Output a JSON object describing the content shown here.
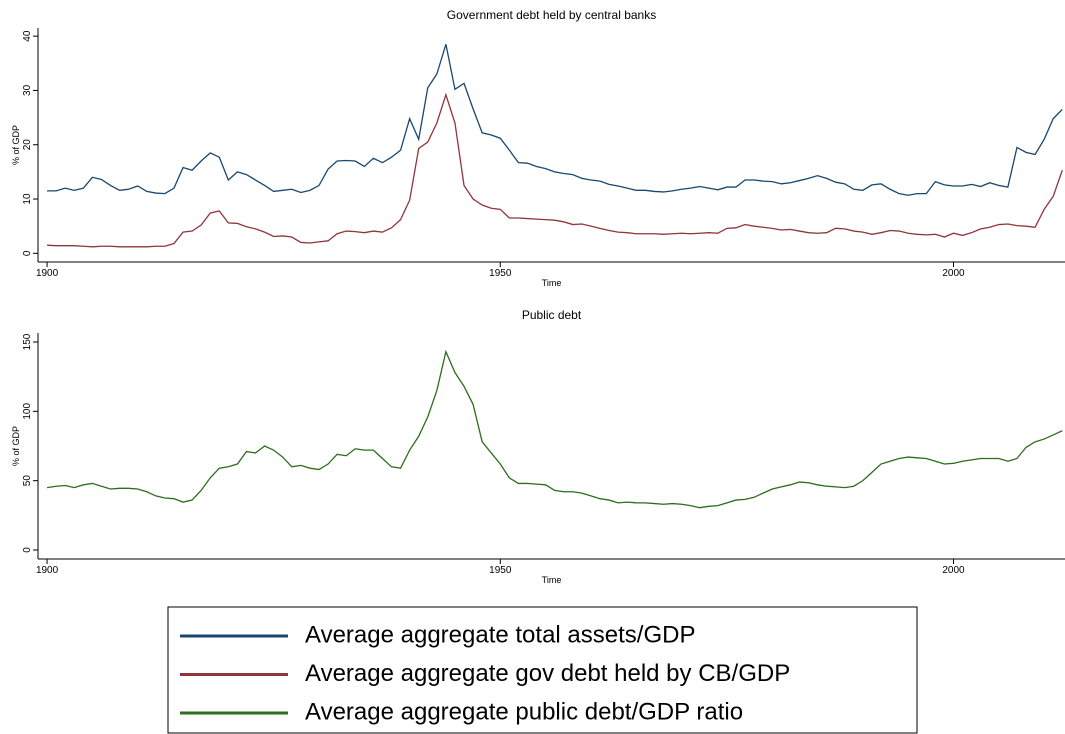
{
  "chart_data": [
    {
      "type": "line",
      "title": "Government debt held by central banks",
      "y_label": "% of GDP",
      "x_label": "Time",
      "xlim": [
        1899,
        2012.3
      ],
      "xticks": [
        1900,
        1950,
        2000
      ],
      "ylim": [
        -1.6,
        41.5
      ],
      "yticks": [
        0,
        10,
        20,
        30,
        40
      ],
      "x": [
        1900,
        1901,
        1902,
        1903,
        1904,
        1905,
        1906,
        1907,
        1908,
        1909,
        1910,
        1911,
        1912,
        1913,
        1914,
        1915,
        1916,
        1917,
        1918,
        1919,
        1920,
        1921,
        1922,
        1923,
        1924,
        1925,
        1926,
        1927,
        1928,
        1929,
        1930,
        1931,
        1932,
        1933,
        1934,
        1935,
        1936,
        1937,
        1938,
        1939,
        1940,
        1941,
        1942,
        1943,
        1944,
        1945,
        1946,
        1947,
        1948,
        1949,
        1950,
        1951,
        1952,
        1953,
        1954,
        1955,
        1956,
        1957,
        1958,
        1959,
        1960,
        1961,
        1962,
        1963,
        1964,
        1965,
        1966,
        1967,
        1968,
        1969,
        1970,
        1971,
        1972,
        1973,
        1974,
        1975,
        1976,
        1977,
        1978,
        1979,
        1980,
        1981,
        1982,
        1983,
        1984,
        1985,
        1986,
        1987,
        1988,
        1989,
        1990,
        1991,
        1992,
        1993,
        1994,
        1995,
        1996,
        1997,
        1998,
        1999,
        2000,
        2001,
        2002,
        2003,
        2004,
        2005,
        2006,
        2007,
        2008,
        2009,
        2010,
        2011,
        2012
      ],
      "series": [
        {
          "name": "Average aggregate total assets/GDP",
          "color": "#1a476f",
          "values": [
            11.5,
            11.5,
            12,
            11.6,
            12,
            14,
            13.6,
            12.5,
            11.6,
            11.8,
            12.4,
            11.4,
            11.1,
            11,
            12,
            15.8,
            15.3,
            17,
            18.5,
            17.7,
            13.5,
            15,
            14.5,
            13.5,
            12.5,
            11.4,
            11.6,
            11.8,
            11.2,
            11.6,
            12.5,
            15.5,
            17,
            17.1,
            17,
            16,
            17.5,
            16.7,
            17.7,
            19,
            24.8,
            21,
            30.5,
            33,
            38.5,
            30.2,
            31.3,
            26.6,
            22.2,
            21.8,
            21.2,
            19,
            16.7,
            16.6,
            16,
            15.6,
            15,
            14.7,
            14.5,
            13.8,
            13.5,
            13.3,
            12.7,
            12.4,
            12,
            11.6,
            11.6,
            11.4,
            11.3,
            11.5,
            11.8,
            12,
            12.3,
            12,
            11.7,
            12.2,
            12.2,
            13.5,
            13.5,
            13.3,
            13.2,
            12.8,
            13,
            13.4,
            13.8,
            14.3,
            13.8,
            13.1,
            12.8,
            11.8,
            11.6,
            12.6,
            12.8,
            11.8,
            11,
            10.7,
            11,
            11,
            13.2,
            12.6,
            12.4,
            12.4,
            12.7,
            12.3,
            13,
            12.5,
            12.2,
            19.5,
            18.6,
            18.2,
            21,
            24.8,
            26.5
          ]
        },
        {
          "name": "Average aggregate gov debt held by CB/GDP",
          "color": "#90353b",
          "values": [
            1.5,
            1.4,
            1.4,
            1.4,
            1.3,
            1.2,
            1.3,
            1.3,
            1.2,
            1.2,
            1.2,
            1.2,
            1.3,
            1.3,
            1.8,
            3.9,
            4.1,
            5.2,
            7.4,
            7.8,
            5.6,
            5.5,
            4.9,
            4.5,
            3.9,
            3.1,
            3.2,
            3,
            2,
            1.9,
            2.1,
            2.3,
            3.6,
            4.1,
            4,
            3.8,
            4.1,
            3.9,
            4.7,
            6.2,
            9.8,
            19.3,
            20.5,
            24,
            29.2,
            24,
            12.5,
            10,
            8.9,
            8.3,
            8.1,
            6.5,
            6.5,
            6.4,
            6.3,
            6.2,
            6.1,
            5.8,
            5.3,
            5.4,
            5,
            4.6,
            4.2,
            3.9,
            3.8,
            3.6,
            3.6,
            3.6,
            3.5,
            3.6,
            3.7,
            3.6,
            3.7,
            3.8,
            3.7,
            4.6,
            4.7,
            5.3,
            5,
            4.8,
            4.6,
            4.3,
            4.4,
            4.1,
            3.8,
            3.7,
            3.8,
            4.6,
            4.5,
            4.1,
            3.9,
            3.5,
            3.8,
            4.2,
            4.1,
            3.7,
            3.5,
            3.4,
            3.5,
            3,
            3.7,
            3.3,
            3.8,
            4.5,
            4.8,
            5.3,
            5.4,
            5.1,
            5,
            4.8,
            8.1,
            10.5,
            15.3
          ]
        }
      ]
    },
    {
      "type": "line",
      "title": "Public debt",
      "y_label": "% of GDP",
      "x_label": "Time",
      "xlim": [
        1899,
        2012.3
      ],
      "xticks": [
        1900,
        1950,
        2000
      ],
      "ylim": [
        -6.5,
        156.5
      ],
      "yticks": [
        0,
        50,
        100,
        150
      ],
      "x": [
        1900,
        1901,
        1902,
        1903,
        1904,
        1905,
        1906,
        1907,
        1908,
        1909,
        1910,
        1911,
        1912,
        1913,
        1914,
        1915,
        1916,
        1917,
        1918,
        1919,
        1920,
        1921,
        1922,
        1923,
        1924,
        1925,
        1926,
        1927,
        1928,
        1929,
        1930,
        1931,
        1932,
        1933,
        1934,
        1935,
        1936,
        1937,
        1938,
        1939,
        1940,
        1941,
        1942,
        1943,
        1944,
        1945,
        1946,
        1947,
        1948,
        1949,
        1950,
        1951,
        1952,
        1953,
        1954,
        1955,
        1956,
        1957,
        1958,
        1959,
        1960,
        1961,
        1962,
        1963,
        1964,
        1965,
        1966,
        1967,
        1968,
        1969,
        1970,
        1971,
        1972,
        1973,
        1974,
        1975,
        1976,
        1977,
        1978,
        1979,
        1980,
        1981,
        1982,
        1983,
        1984,
        1985,
        1986,
        1987,
        1988,
        1989,
        1990,
        1991,
        1992,
        1993,
        1994,
        1995,
        1996,
        1997,
        1998,
        1999,
        2000,
        2001,
        2002,
        2003,
        2004,
        2005,
        2006,
        2007,
        2008,
        2009,
        2010,
        2011,
        2012
      ],
      "series": [
        {
          "name": "Average aggregate public debt/GDP ratio",
          "color": "#2d6d1e",
          "values": [
            45,
            46,
            46.5,
            45,
            47,
            48,
            46,
            44,
            44.5,
            44.5,
            44,
            42,
            39,
            37.5,
            37,
            34.5,
            36,
            43,
            52,
            59,
            60,
            62,
            71,
            70,
            75,
            72,
            67,
            60,
            61,
            59,
            58,
            62,
            69,
            68,
            73,
            72,
            72,
            66,
            60,
            59,
            72,
            82,
            96,
            115,
            143,
            128,
            118,
            105,
            78,
            70,
            62,
            52,
            48,
            48,
            47.5,
            47,
            43,
            42,
            42,
            41,
            39,
            37,
            36,
            34,
            34.5,
            34,
            34,
            33.5,
            33,
            33.5,
            33,
            32,
            30.5,
            31.5,
            32,
            34,
            36,
            36.5,
            38,
            41,
            44,
            45.5,
            47,
            49,
            48.5,
            47,
            46,
            45.5,
            45,
            46,
            50,
            56,
            62,
            64,
            66,
            67,
            66.5,
            66,
            64,
            62,
            62.5,
            64,
            65,
            66,
            66,
            66,
            64,
            66,
            74,
            78,
            80,
            83,
            86
          ]
        }
      ]
    }
  ]
}
